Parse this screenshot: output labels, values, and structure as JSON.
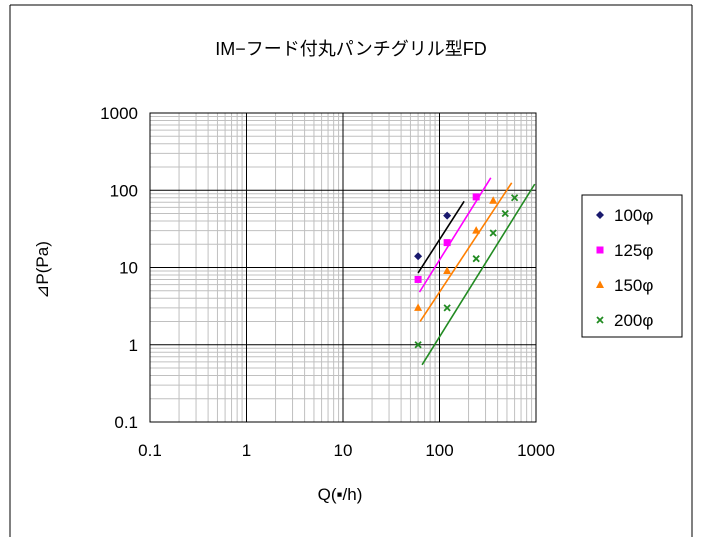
{
  "chart_data": {
    "type": "scatter",
    "title": "IM−フード付丸パンチグリル型FD",
    "xlabel": "Q(▪/h)",
    "ylabel": "⊿P(Pa)",
    "xscale": "log",
    "yscale": "log",
    "xlim": [
      0.1,
      1000
    ],
    "ylim": [
      0.1,
      1000
    ],
    "x_ticks": [
      "0.1",
      "1",
      "10",
      "100",
      "1000"
    ],
    "y_ticks": [
      "0.1",
      "1",
      "10",
      "100",
      "1000"
    ],
    "grid": true,
    "legend_position": "right",
    "series": [
      {
        "name": "100φ",
        "marker": "diamond",
        "color": "#1a1a6e",
        "points": [
          [
            60,
            14
          ],
          [
            120,
            47
          ]
        ],
        "trend": {
          "line_color": "#000000",
          "x": [
            60,
            180
          ],
          "y": [
            8.5,
            72
          ]
        }
      },
      {
        "name": "125φ",
        "marker": "square",
        "color": "#ff00ff",
        "points": [
          [
            60,
            7
          ],
          [
            120,
            21
          ],
          [
            240,
            82
          ]
        ],
        "trend": {
          "line_color": "#ff00ff",
          "x": [
            62,
            340
          ],
          "y": [
            4.8,
            145
          ]
        }
      },
      {
        "name": "150φ",
        "marker": "triangle",
        "color": "#ff7f00",
        "points": [
          [
            60,
            3
          ],
          [
            120,
            9
          ],
          [
            240,
            30
          ],
          [
            360,
            73
          ]
        ],
        "trend": {
          "line_color": "#ff7f00",
          "x": [
            63,
            560
          ],
          "y": [
            2,
            125
          ]
        }
      },
      {
        "name": "200φ",
        "marker": "x",
        "color": "#228b22",
        "points": [
          [
            60,
            1
          ],
          [
            120,
            3
          ],
          [
            240,
            13
          ],
          [
            360,
            28
          ],
          [
            480,
            50
          ],
          [
            600,
            80
          ]
        ],
        "trend": {
          "line_color": "#228b22",
          "x": [
            66,
            970
          ],
          "y": [
            0.55,
            120
          ]
        }
      }
    ]
  }
}
